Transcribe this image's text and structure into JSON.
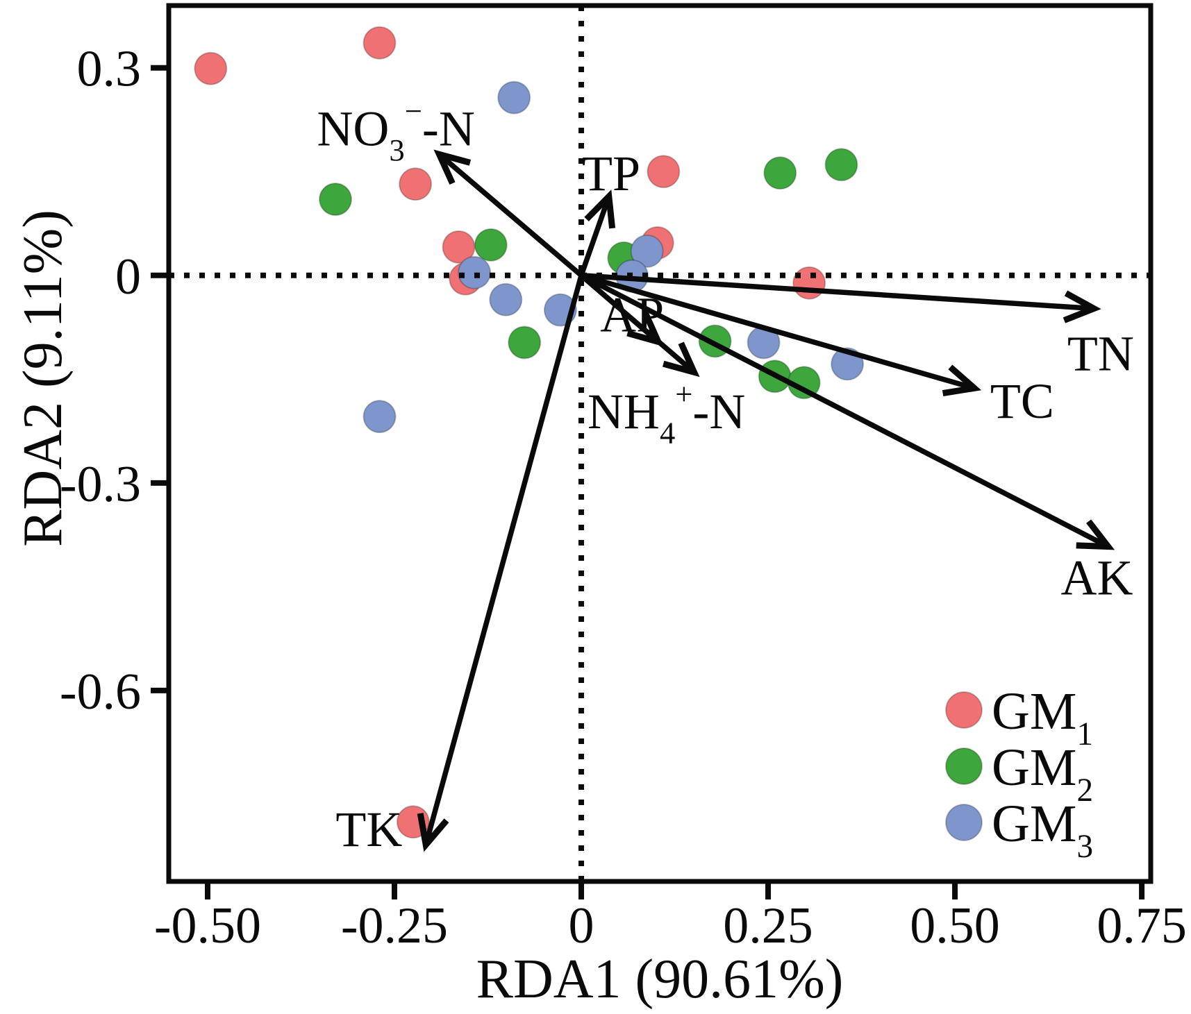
{
  "figure": {
    "background": "#ffffff",
    "frame_color": "#0a0a0a"
  },
  "chart_data": {
    "type": "scatter",
    "title": "",
    "xlabel": "RDA1 (90.61%)",
    "ylabel": "RDA2 (9.11%)",
    "xlim": [
      -0.552,
      0.762
    ],
    "ylim": [
      -0.876,
      0.39
    ],
    "grid": "dotted zero reference lines only",
    "x_ticks": [
      {
        "value": -0.5,
        "label": "-0.50"
      },
      {
        "value": -0.25,
        "label": "-0.25"
      },
      {
        "value": 0,
        "label": "0"
      },
      {
        "value": 0.25,
        "label": "0.25"
      },
      {
        "value": 0.5,
        "label": "0.50"
      },
      {
        "value": 0.75,
        "label": "0.75"
      }
    ],
    "y_ticks": [
      {
        "value": 0.3,
        "label": "0.3"
      },
      {
        "value": 0,
        "label": "0"
      },
      {
        "value": -0.3,
        "label": "-0.3"
      },
      {
        "value": -0.6,
        "label": "-0.6"
      }
    ],
    "series": [
      {
        "name": "GM1",
        "color": "#F07173",
        "points": [
          [
            -0.496,
            0.299
          ],
          [
            -0.27,
            0.336
          ],
          [
            -0.222,
            0.132
          ],
          [
            -0.164,
            0.041
          ],
          [
            -0.155,
            -0.005
          ],
          [
            0.11,
            0.15
          ],
          [
            0.102,
            0.047
          ],
          [
            0.305,
            -0.011
          ],
          [
            -0.225,
            -0.79
          ]
        ]
      },
      {
        "name": "GM2",
        "color": "#3DA63D",
        "points": [
          [
            -0.329,
            0.11
          ],
          [
            -0.121,
            0.044
          ],
          [
            -0.076,
            -0.097
          ],
          [
            0.057,
            0.025
          ],
          [
            0.266,
            0.148
          ],
          [
            0.348,
            0.16
          ],
          [
            0.179,
            -0.095
          ],
          [
            0.259,
            -0.146
          ],
          [
            0.298,
            -0.155
          ]
        ]
      },
      {
        "name": "GM3",
        "color": "#7E96CB",
        "points": [
          [
            -0.09,
            0.257
          ],
          [
            -0.143,
            0.004
          ],
          [
            -0.101,
            -0.035
          ],
          [
            -0.028,
            -0.05
          ],
          [
            -0.27,
            -0.204
          ],
          [
            0.088,
            0.035
          ],
          [
            0.068,
            -0.001
          ],
          [
            0.244,
            -0.097
          ],
          [
            0.356,
            -0.128
          ]
        ]
      }
    ],
    "arrows": [
      {
        "name": "NO3-N",
        "x": -0.19,
        "y": 0.175,
        "label": {
          "main": "NO",
          "sub": "3",
          "sup": "−",
          "rest": "-N"
        },
        "label_pos": [
          -0.248,
          0.213
        ]
      },
      {
        "name": "TP",
        "x": 0.037,
        "y": 0.114,
        "label": {
          "main": "TP"
        },
        "label_pos": [
          0.04,
          0.148
        ]
      },
      {
        "name": "AP",
        "x": 0.103,
        "y": -0.096,
        "label": {
          "main": "AP"
        },
        "label_pos": [
          0.068,
          -0.056
        ]
      },
      {
        "name": "NH4-N",
        "x": 0.151,
        "y": -0.14,
        "label": {
          "main": "NH",
          "sub": "4",
          "sup": "+",
          "rest": "-N"
        },
        "label_pos": [
          0.114,
          -0.196
        ]
      },
      {
        "name": "TN",
        "x": 0.686,
        "y": -0.048,
        "label": {
          "main": "TN"
        },
        "label_pos": [
          0.695,
          -0.112
        ]
      },
      {
        "name": "TC",
        "x": 0.526,
        "y": -0.163,
        "label": {
          "main": "TC"
        },
        "label_pos": [
          0.59,
          -0.181
        ]
      },
      {
        "name": "AK",
        "x": 0.705,
        "y": -0.392,
        "label": {
          "main": "AK"
        },
        "label_pos": [
          0.69,
          -0.436
        ]
      },
      {
        "name": "TK",
        "x": -0.208,
        "y": -0.823,
        "label": {
          "main": "TK"
        },
        "label_pos": [
          -0.284,
          -0.8
        ]
      }
    ],
    "legend": {
      "position": "bottom-right",
      "entries": [
        {
          "main": "GM",
          "sub": "1",
          "color": "#F07173"
        },
        {
          "main": "GM",
          "sub": "2",
          "color": "#3DA63D"
        },
        {
          "main": "GM",
          "sub": "3",
          "color": "#7E96CB"
        }
      ]
    }
  }
}
